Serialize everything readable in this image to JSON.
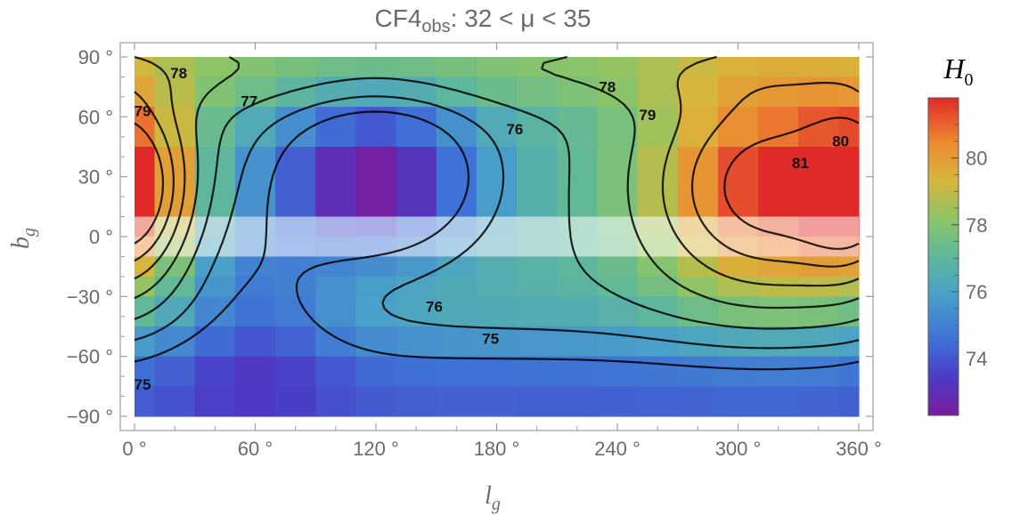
{
  "chart_data": {
    "type": "heatmap",
    "title": {
      "prefix": "CF4",
      "sub": "obs",
      "rest": ": 32  <  μ  <  35"
    },
    "xlabel": {
      "main": "l",
      "sub": "g"
    },
    "ylabel": {
      "main": "b",
      "sub": "g"
    },
    "xlim": [
      0,
      360
    ],
    "ylim": [
      -90,
      90
    ],
    "x_ticks": [
      0,
      60,
      120,
      180,
      240,
      300,
      360
    ],
    "y_ticks": [
      90,
      60,
      30,
      0,
      -30,
      -60,
      -90
    ],
    "x_tick_labels": [
      "0 °",
      "60 °",
      "120 °",
      "180 °",
      "240 °",
      "300 °",
      "360 °"
    ],
    "y_tick_labels": [
      "90 °",
      "60 °",
      "30 °",
      "0 °",
      "−30 °",
      "−60 °",
      "−90 °"
    ],
    "lon_edges": [
      0,
      10,
      30,
      50,
      70,
      90,
      110,
      130,
      150,
      170,
      190,
      210,
      230,
      250,
      270,
      290,
      310,
      330,
      350,
      360
    ],
    "lat_edges": [
      90,
      80,
      65,
      45,
      10,
      0,
      -10,
      -20,
      -30,
      -45,
      -60,
      -75,
      -90
    ],
    "masked_lat_band": [
      -10,
      10
    ],
    "colorbar": {
      "title_main": "H",
      "title_sub": "0",
      "min": 72.3,
      "max": 81.8,
      "ticks": [
        74,
        76,
        78,
        80
      ],
      "tick_labels": [
        "74",
        "76",
        "78",
        "80"
      ]
    },
    "contour_labels": [
      {
        "text": "78",
        "l": 22,
        "b": 82
      },
      {
        "text": "77",
        "l": 57,
        "b": 68
      },
      {
        "text": "79",
        "l": 4,
        "b": 63
      },
      {
        "text": "78",
        "l": 235,
        "b": 75
      },
      {
        "text": "79",
        "l": 255,
        "b": 61
      },
      {
        "text": "76",
        "l": 189,
        "b": 54
      },
      {
        "text": "80",
        "l": 351,
        "b": 48
      },
      {
        "text": "81",
        "l": 331,
        "b": 37
      },
      {
        "text": "76",
        "l": 149,
        "b": -35
      },
      {
        "text": "75",
        "l": 177,
        "b": -51
      },
      {
        "text": "75",
        "l": 4,
        "b": -74
      }
    ]
  }
}
